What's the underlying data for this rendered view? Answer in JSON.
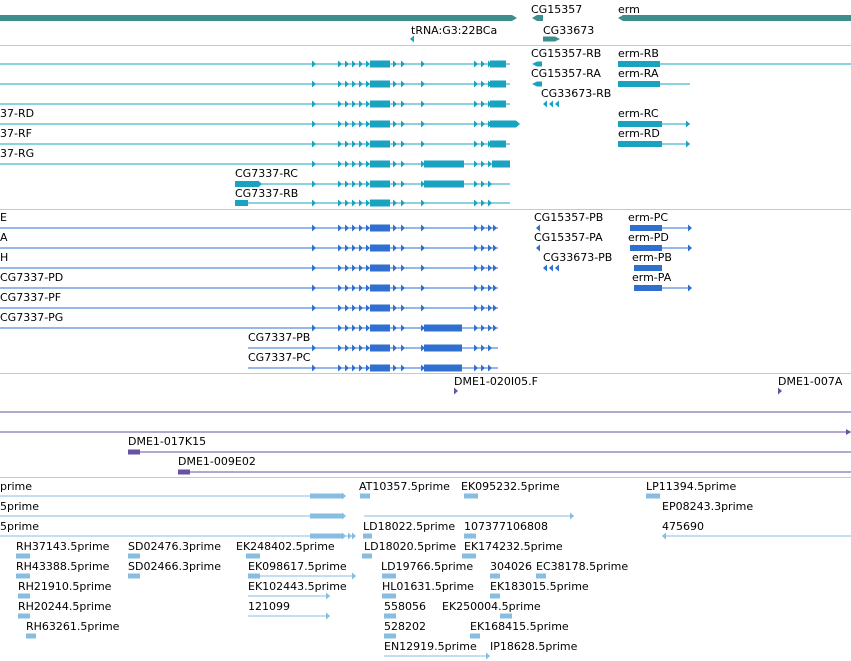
{
  "colors": {
    "gene": "#3e8e8e",
    "mrna_a": "#1aa3c0",
    "mrna_b": "#2f6fd0",
    "clone": "#6a52a3",
    "est": "#86bde0",
    "divider": "#c8c8c8"
  },
  "tracks": [
    {
      "name": "gene",
      "features": [
        {
          "label": "CG15357"
        },
        {
          "label": "erm"
        },
        {
          "label": "tRNA:G3:22BCa"
        },
        {
          "label": "CG33673"
        }
      ]
    },
    {
      "name": "transcripts-a",
      "features": [
        {
          "label": "CG15357-RB"
        },
        {
          "label": "erm-RB"
        },
        {
          "label": "CG15357-RA"
        },
        {
          "label": "erm-RA"
        },
        {
          "label": "CG33673-RB"
        },
        {
          "label": "37-RD"
        },
        {
          "label": "erm-RC"
        },
        {
          "label": "37-RF"
        },
        {
          "label": "erm-RD"
        },
        {
          "label": "37-RG"
        },
        {
          "label": "CG7337-RC"
        },
        {
          "label": "CG7337-RB"
        }
      ]
    },
    {
      "name": "transcripts-b",
      "features": [
        {
          "label": "E"
        },
        {
          "label": "CG15357-PB"
        },
        {
          "label": "erm-PC"
        },
        {
          "label": "A"
        },
        {
          "label": "CG15357-PA"
        },
        {
          "label": "erm-PD"
        },
        {
          "label": "H"
        },
        {
          "label": "CG33673-PB"
        },
        {
          "label": "erm-PB"
        },
        {
          "label": "CG7337-PD"
        },
        {
          "label": "erm-PA"
        },
        {
          "label": "CG7337-PF"
        },
        {
          "label": "CG7337-PG"
        },
        {
          "label": "CG7337-PB"
        },
        {
          "label": "CG7337-PC"
        }
      ]
    },
    {
      "name": "clones",
      "features": [
        {
          "label": "DME1-020I05.F"
        },
        {
          "label": "DME1-007A"
        },
        {
          "label": "DME1-017K15"
        },
        {
          "label": "DME1-009E02"
        }
      ]
    },
    {
      "name": "ests",
      "features": [
        {
          "label": "prime"
        },
        {
          "label": "AT10357.5prime"
        },
        {
          "label": "EK095232.5prime"
        },
        {
          "label": "LP11394.5prime"
        },
        {
          "label": "5prime"
        },
        {
          "label": "EP08243.3prime"
        },
        {
          "label": "5prime"
        },
        {
          "label": "LD18022.5prime"
        },
        {
          "label": "107377106808"
        },
        {
          "label": "475690"
        },
        {
          "label": "RH37143.5prime"
        },
        {
          "label": "SD02476.3prime"
        },
        {
          "label": "EK248402.5prime"
        },
        {
          "label": "LD18020.5prime"
        },
        {
          "label": "EK174232.5prime"
        },
        {
          "label": "RH43388.5prime"
        },
        {
          "label": "SD02466.3prime"
        },
        {
          "label": "EK098617.5prime"
        },
        {
          "label": "LD19766.5prime"
        },
        {
          "label": "304026"
        },
        {
          "label": "EC38178.5prime"
        },
        {
          "label": "RH21910.5prime"
        },
        {
          "label": "EK102443.5prime"
        },
        {
          "label": "HL01631.5prime"
        },
        {
          "label": "EK183015.5prime"
        },
        {
          "label": "RH20244.5prime"
        },
        {
          "label": "121099"
        },
        {
          "label": "558056"
        },
        {
          "label": "EK250004.5prime"
        },
        {
          "label": "RH63261.5prime"
        },
        {
          "label": "528202"
        },
        {
          "label": "EK168415.5prime"
        },
        {
          "label": "EN12919.5prime"
        },
        {
          "label": "IP18628.5prime"
        }
      ]
    }
  ]
}
